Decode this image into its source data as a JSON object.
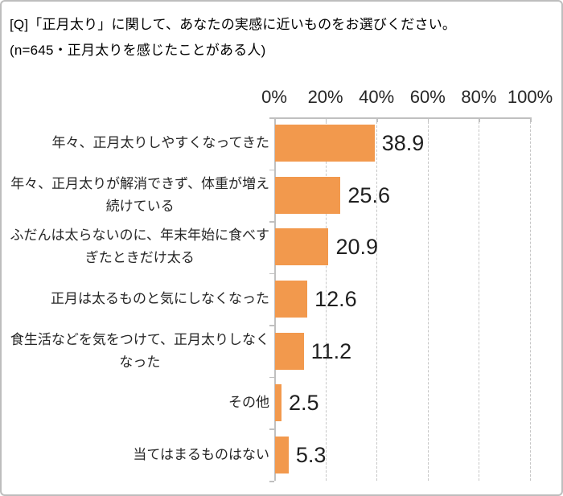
{
  "title": {
    "line1": "[Q]「正月太り」に関して、あなたの実感に近いものをお選びください。",
    "line2": "(n=645・正月太りを感じたことがある人)"
  },
  "chart_data": {
    "type": "bar",
    "orientation": "horizontal",
    "title": "[Q]「正月太り」に関して、あなたの実感に近いものをお選びください。(n=645・正月太りを感じたことがある人)",
    "categories": [
      "年々、正月太りしやすくなってきた",
      "年々、正月太りが解消できず、体重が増え続けている",
      "ふだんは太らないのに、年末年始に食べすぎたときだけ太る",
      "正月は太るものと気にしなくなった",
      "食生活などを気をつけて、正月太りしなくなった",
      "その他",
      "当てはまるものはない"
    ],
    "category_lines": [
      [
        "年々、正月太りしやすくなってきた"
      ],
      [
        "年々、正月太りが解消できず、体重が増え",
        "続けている"
      ],
      [
        "ふだんは太らないのに、年末年始に食べす",
        "ぎたときだけ太る"
      ],
      [
        "正月は太るものと気にしなくなった"
      ],
      [
        "食生活などを気をつけて、正月太りしなく",
        "なった"
      ],
      [
        "その他"
      ],
      [
        "当てはまるものはない"
      ]
    ],
    "values": [
      38.9,
      25.6,
      20.9,
      12.6,
      11.2,
      2.5,
      5.3
    ],
    "value_labels": [
      "38.9",
      "25.6",
      "20.9",
      "12.6",
      "11.2",
      "2.5",
      "5.3"
    ],
    "x_axis": {
      "ticks": [
        "0%",
        "20%",
        "40%",
        "60%",
        "80%",
        "100%"
      ],
      "min": 0,
      "max": 100,
      "gridlines": "dashed-vertical"
    },
    "legend": "none",
    "unit": "%",
    "bar_color": "#f2994d",
    "grid_color": "#c6c6c6",
    "axis_color": "#c0c0c0",
    "text_color": "#262626"
  }
}
